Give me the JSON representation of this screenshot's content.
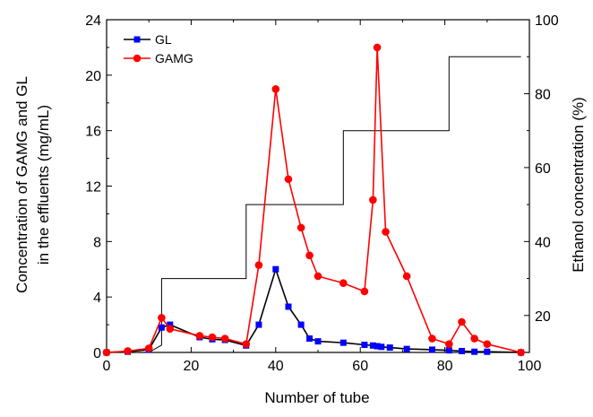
{
  "chart_data": {
    "type": "line",
    "title": "",
    "xlabel": "Number of tube",
    "ylabel_left": [
      "Concentration of GAMG and GL",
      "in the effluents (mg/mL)"
    ],
    "ylabel_right": "Ethanol concentration (%)",
    "xlim": [
      0,
      100
    ],
    "ylim_left": [
      0,
      24
    ],
    "ylim_right": [
      10,
      100
    ],
    "x_ticks": [
      0,
      20,
      40,
      60,
      80,
      100
    ],
    "y_left_ticks": [
      0,
      4,
      8,
      12,
      16,
      20,
      24
    ],
    "y_right_ticks": [
      20,
      40,
      60,
      80,
      100
    ],
    "x_tick_labels": [
      "0",
      "20",
      "40",
      "60",
      "80",
      "100"
    ],
    "y_left_tick_labels": [
      "0",
      "4",
      "8",
      "12",
      "16",
      "20",
      "24"
    ],
    "y_right_tick_labels": [
      "20",
      "40",
      "60",
      "80",
      "100"
    ],
    "legend_position": "top-left",
    "grid": false,
    "series": [
      {
        "name": "GL",
        "axis": "left",
        "color": "#0000ff",
        "marker": "square",
        "line_color": "#000000",
        "x": [
          0,
          5,
          10,
          13,
          15,
          22,
          25,
          28,
          33,
          36,
          40,
          43,
          46,
          48,
          50,
          56,
          61,
          63,
          64,
          65,
          67,
          71,
          77,
          81,
          84,
          87,
          90,
          98
        ],
        "values": [
          0.0,
          0.05,
          0.2,
          1.8,
          2.0,
          1.1,
          0.95,
          0.9,
          0.5,
          2.0,
          6.0,
          3.3,
          2.0,
          1.0,
          0.8,
          0.7,
          0.55,
          0.5,
          0.45,
          0.4,
          0.35,
          0.25,
          0.2,
          0.15,
          0.1,
          0.05,
          0.05,
          0.0
        ]
      },
      {
        "name": "GAMG",
        "axis": "left",
        "color": "#ff0000",
        "marker": "circle",
        "line_color": "#ff0000",
        "x": [
          0,
          5,
          10,
          13,
          15,
          22,
          25,
          28,
          33,
          36,
          40,
          43,
          46,
          48,
          50,
          56,
          61,
          63,
          64,
          66,
          71,
          77,
          81,
          84,
          87,
          90,
          98
        ],
        "values": [
          0.0,
          0.1,
          0.3,
          2.5,
          1.7,
          1.2,
          1.1,
          1.0,
          0.6,
          6.3,
          19.0,
          12.5,
          9.0,
          7.0,
          5.5,
          5.0,
          4.4,
          11.0,
          22.0,
          8.7,
          5.5,
          1.0,
          0.6,
          2.2,
          1.0,
          0.6,
          0.0
        ]
      },
      {
        "name": "Ethanol",
        "axis": "right",
        "color": "#000000",
        "marker": "none",
        "step": true,
        "x": [
          0,
          10,
          10,
          13,
          13,
          28,
          28,
          33,
          33,
          50,
          50,
          56,
          56,
          77,
          77,
          81,
          81,
          98
        ],
        "values": [
          10,
          10,
          10,
          12,
          30,
          30,
          30,
          30,
          50,
          50,
          50,
          50,
          70,
          70,
          70,
          70,
          90,
          90
        ]
      }
    ]
  }
}
